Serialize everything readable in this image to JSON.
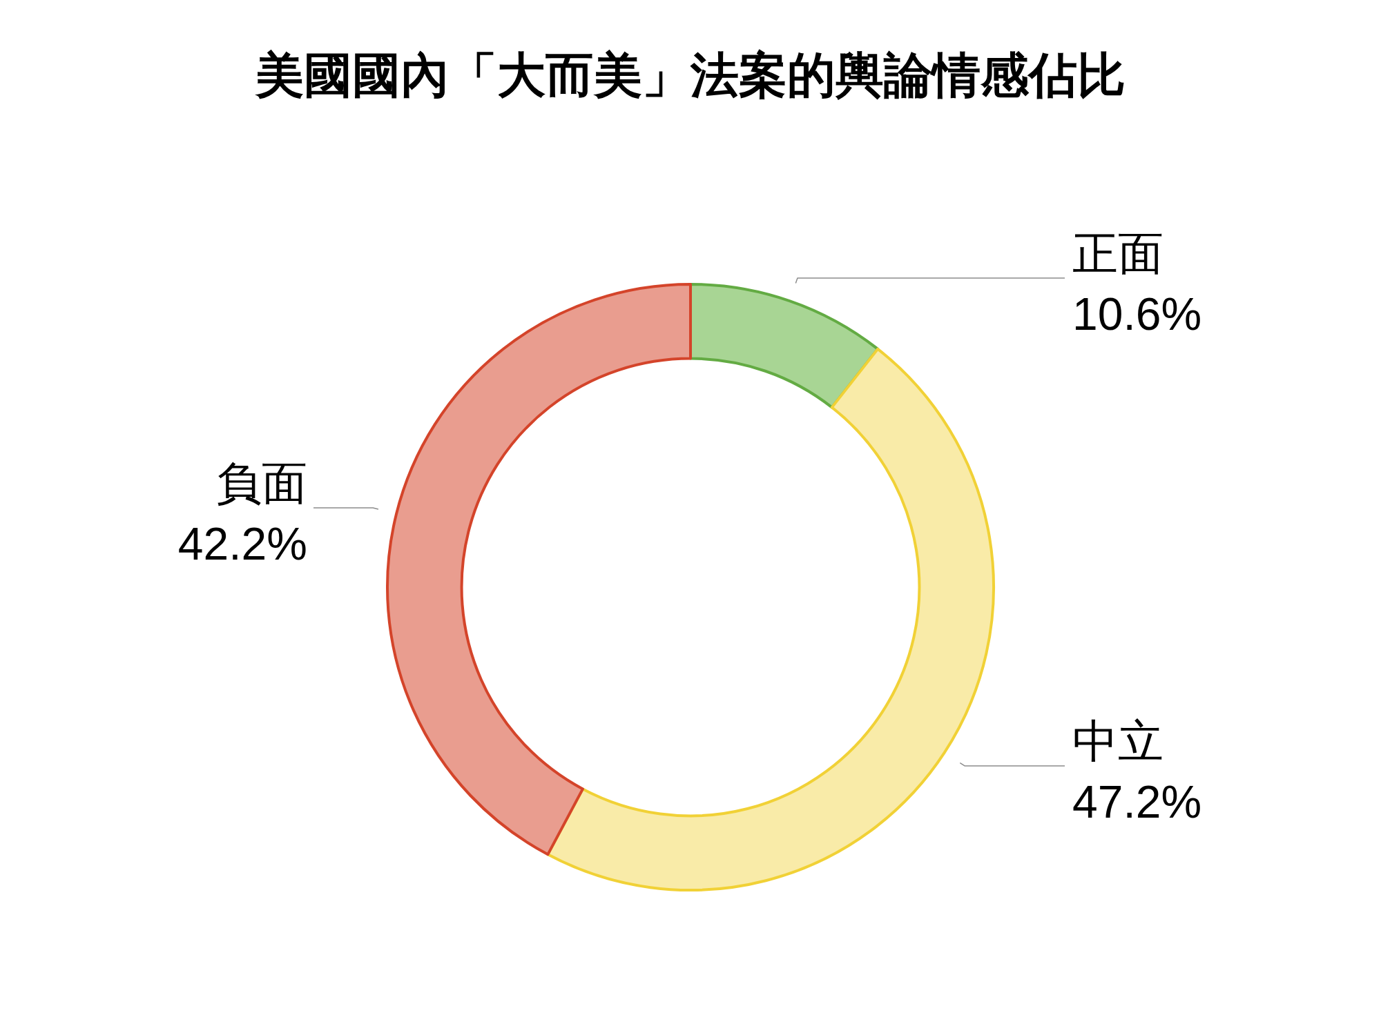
{
  "chart_data": {
    "type": "donut",
    "title": "美國國內「大而美」法案的輿論情感佔比",
    "categories": [
      "正面",
      "中立",
      "負面"
    ],
    "values": [
      10.6,
      47.2,
      42.2
    ],
    "colors": [
      "#a8d594",
      "#f9eba8",
      "#e99d8f"
    ],
    "value_labels": [
      "10.6%",
      "47.2%",
      "42.2%"
    ],
    "legend": false
  }
}
